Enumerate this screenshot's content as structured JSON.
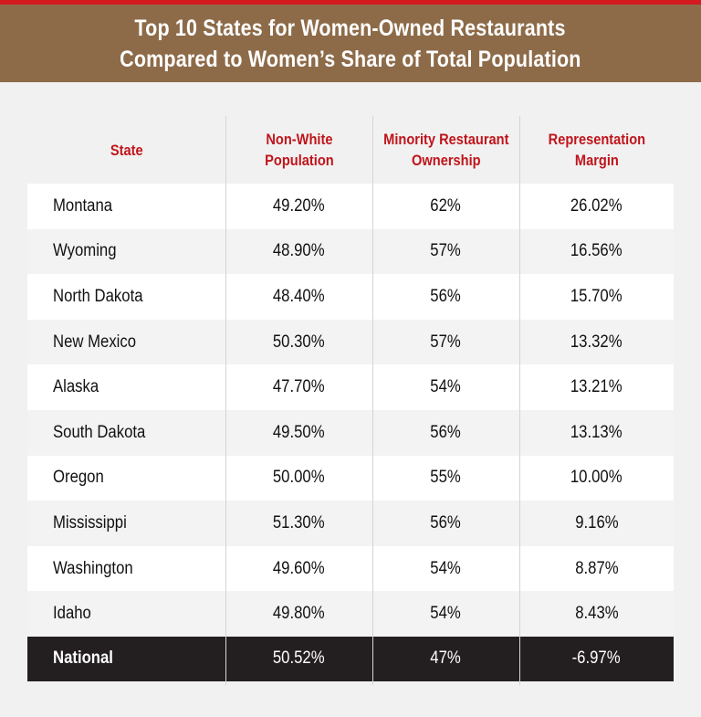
{
  "title_line1": "Top 10 States for Women-Owned Restaurants",
  "title_line2": "Compared to Women’s Share of Total Population",
  "colors": {
    "accent_red": "#d21a1f",
    "header_brown": "#8d6b49",
    "column_header_red": "#c0141b",
    "national_row_bg": "#231f20"
  },
  "chart_data": {
    "type": "table",
    "columns": [
      "State",
      "Non-White Population",
      "Minority Restaurant Ownership",
      "Representation Margin"
    ],
    "column_header_lines": [
      [
        "State"
      ],
      [
        "Non-White",
        "Population"
      ],
      [
        "Minority Restaurant",
        "Ownership"
      ],
      [
        "Representation",
        "Margin"
      ]
    ],
    "rows": [
      [
        "Montana",
        "49.20%",
        "62%",
        "26.02%"
      ],
      [
        "Wyoming",
        "48.90%",
        "57%",
        "16.56%"
      ],
      [
        "North Dakota",
        "48.40%",
        "56%",
        "15.70%"
      ],
      [
        "New Mexico",
        "50.30%",
        "57%",
        "13.32%"
      ],
      [
        "Alaska",
        "47.70%",
        "54%",
        "13.21%"
      ],
      [
        "South Dakota",
        "49.50%",
        "56%",
        "13.13%"
      ],
      [
        "Oregon",
        "50.00%",
        "55%",
        "10.00%"
      ],
      [
        "Mississippi",
        "51.30%",
        "56%",
        "9.16%"
      ],
      [
        "Washington",
        "49.60%",
        "54%",
        "8.87%"
      ],
      [
        "Idaho",
        "49.80%",
        "54%",
        "8.43%"
      ]
    ],
    "total_row": [
      "National",
      "50.52%",
      "47%",
      "-6.97%"
    ]
  }
}
